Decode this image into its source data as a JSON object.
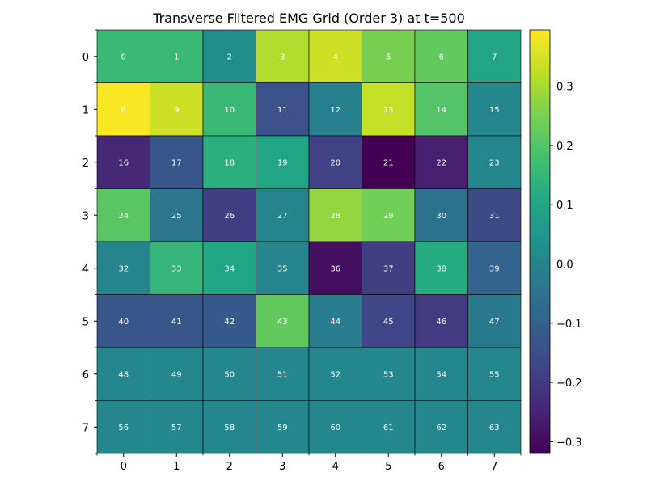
{
  "chart_data": {
    "type": "heatmap",
    "title": "Transverse Filtered EMG Grid (Order 3) at t=500",
    "xlabel": "",
    "ylabel": "",
    "x_ticks": [
      "0",
      "1",
      "2",
      "3",
      "4",
      "5",
      "6",
      "7"
    ],
    "y_ticks": [
      "0",
      "1",
      "2",
      "3",
      "4",
      "5",
      "6",
      "7"
    ],
    "colormap": "viridis",
    "vmin": -0.32,
    "vmax": 0.395,
    "colorbar_ticks": [
      {
        "value": 0.3,
        "label": "0.3"
      },
      {
        "value": 0.2,
        "label": "0.2"
      },
      {
        "value": 0.1,
        "label": "0.1"
      },
      {
        "value": 0.0,
        "label": "0.0"
      },
      {
        "value": -0.1,
        "label": "−0.1"
      },
      {
        "value": -0.2,
        "label": "−0.2"
      },
      {
        "value": -0.3,
        "label": "−0.3"
      }
    ],
    "values": [
      [
        0.16,
        0.16,
        0.03,
        0.31,
        0.34,
        0.25,
        0.22,
        0.1
      ],
      [
        0.39,
        0.34,
        0.16,
        -0.14,
        -0.01,
        0.33,
        0.2,
        0.01
      ],
      [
        -0.24,
        -0.13,
        0.13,
        0.1,
        -0.18,
        -0.32,
        -0.26,
        0.01
      ],
      [
        0.21,
        -0.04,
        -0.19,
        0.0,
        0.28,
        0.24,
        -0.05,
        -0.16
      ],
      [
        0.0,
        0.15,
        0.1,
        0.0,
        -0.29,
        -0.19,
        0.12,
        -0.09
      ],
      [
        -0.13,
        -0.13,
        -0.12,
        0.22,
        -0.02,
        -0.17,
        -0.2,
        -0.03
      ],
      [
        0.01,
        0.01,
        0.01,
        0.01,
        0.01,
        0.01,
        0.01,
        0.01
      ],
      [
        0.01,
        0.01,
        0.01,
        0.01,
        0.01,
        0.01,
        0.01,
        0.01
      ]
    ],
    "cell_labels": [
      [
        "0",
        "1",
        "2",
        "3",
        "4",
        "5",
        "6",
        "7"
      ],
      [
        "8",
        "9",
        "10",
        "11",
        "12",
        "13",
        "14",
        "15"
      ],
      [
        "16",
        "17",
        "18",
        "19",
        "20",
        "21",
        "22",
        "23"
      ],
      [
        "24",
        "25",
        "26",
        "27",
        "28",
        "29",
        "30",
        "31"
      ],
      [
        "32",
        "33",
        "34",
        "35",
        "36",
        "37",
        "38",
        "39"
      ],
      [
        "40",
        "41",
        "42",
        "43",
        "44",
        "45",
        "46",
        "47"
      ],
      [
        "48",
        "49",
        "50",
        "51",
        "52",
        "53",
        "54",
        "55"
      ],
      [
        "56",
        "57",
        "58",
        "59",
        "60",
        "61",
        "62",
        "63"
      ]
    ],
    "grid_lines": true,
    "colorbar_position": "right"
  }
}
